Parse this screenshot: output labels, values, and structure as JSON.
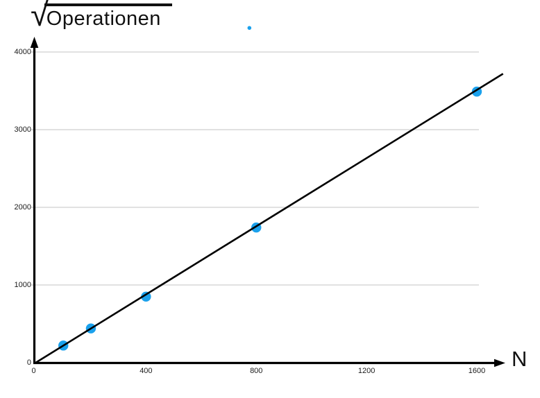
{
  "title": {
    "radical": "√",
    "radicand": "Operationen"
  },
  "x_axis_label": "N",
  "chart_data": {
    "type": "scatter",
    "title": "√Operationen",
    "xlabel": "N",
    "ylabel": "√Operationen",
    "x": [
      100,
      200,
      400,
      800,
      1600
    ],
    "y": [
      220,
      440,
      850,
      1740,
      3490
    ],
    "outlier_point": {
      "x": 775,
      "y": 4310
    },
    "trend_line": {
      "x_start": 0,
      "y_start": 0,
      "x_end": 1695,
      "y_end": 3720
    },
    "x_ticks": [
      0,
      400,
      800,
      1200,
      1600
    ],
    "y_ticks": [
      0,
      1000,
      2000,
      3000,
      4000
    ],
    "x_tick_labels": [
      "0",
      "400",
      "800",
      "1200",
      "1600"
    ],
    "y_tick_labels": [
      "0",
      "1000",
      "2000",
      "3000",
      "4000"
    ],
    "xlim": [
      0,
      1700
    ],
    "ylim": [
      0,
      4200
    ],
    "grid": "horizontal",
    "legend": "none",
    "colors": {
      "point": "#1BA1EC",
      "line": "#000000",
      "axis": "#000000",
      "grid": "#D7D7D7",
      "text": "#1A1A1A"
    }
  }
}
